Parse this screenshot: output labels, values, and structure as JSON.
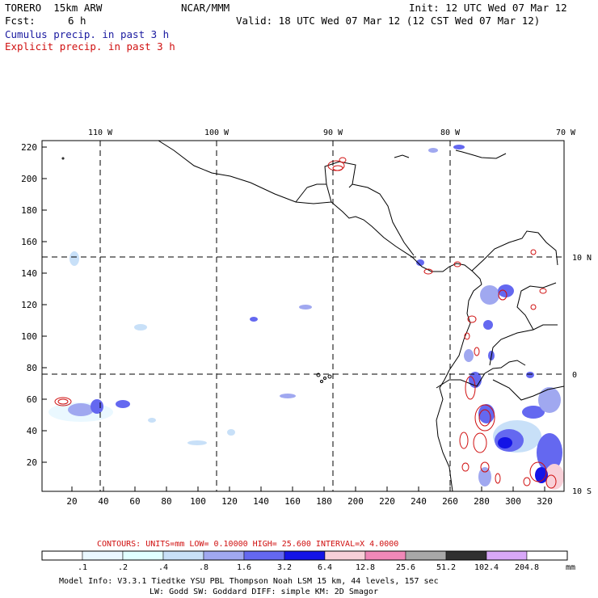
{
  "header": {
    "model": "TORERO  15km ARW",
    "org": "NCAR/MMM",
    "init": "Init: 12 UTC Wed 07 Mar 12",
    "fcst_label": "Fcst:",
    "fcst_value": "6 h",
    "valid": "Valid: 18 UTC Wed 07 Mar 12 (12 CST Wed 07 Mar 12)",
    "field1": "Cumulus precip. in past 3 h",
    "field2": "Explicit precip. in past 3 h"
  },
  "map": {
    "lon_labels": [
      "110 W",
      "100 W",
      "90 W",
      "80 W",
      "70 W"
    ],
    "lat_labels": [
      "10 N",
      "0",
      "10 S"
    ],
    "x_ticks": [
      "20",
      "40",
      "60",
      "80",
      "100",
      "120",
      "140",
      "160",
      "180",
      "200",
      "220",
      "240",
      "260",
      "280",
      "300",
      "320"
    ],
    "y_ticks": [
      "220",
      "200",
      "180",
      "160",
      "140",
      "120",
      "100",
      "80",
      "60",
      "40",
      "20"
    ]
  },
  "contours": {
    "text": "CONTOURS:  UNITS=mm  LOW= 0.10000      HIGH=  25.600      INTERVAL=X  4.0000"
  },
  "colorbar": {
    "labels": [
      ".1",
      ".2",
      ".4",
      ".8",
      "1.6",
      "3.2",
      "6.4",
      "12.8",
      "25.6",
      "51.2",
      "102.4",
      "204.8"
    ],
    "unit": "mm",
    "colors": [
      "#ffffff",
      "#eaf8ff",
      "#e0ffff",
      "#c8e0f8",
      "#a0a8f0",
      "#6468f0",
      "#1414e6",
      "#f8d0d8",
      "#f088b8",
      "#a8a8a8",
      "#303030",
      "#d8a8f8"
    ]
  },
  "footer": {
    "line1": "Model Info: V3.3.1   Tiedtke YSU PBL  Thompson    Noah LSM  15 km,   44 levels,  157 sec",
    "line2": "LW: Godd SW: Goddard DIFF: simple KM: 2D Smagor"
  }
}
